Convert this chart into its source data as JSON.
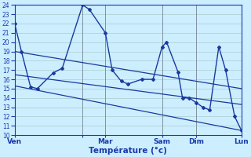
{
  "xlabel": "Température (°c)",
  "background_color": "#cceeff",
  "grid_color": "#aacccc",
  "line_color": "#1a3a9e",
  "ylim": [
    10,
    24
  ],
  "yticks": [
    10,
    11,
    12,
    13,
    14,
    15,
    16,
    17,
    18,
    19,
    20,
    21,
    22,
    23,
    24
  ],
  "xlim": [
    0,
    100
  ],
  "x_tick_positions": [
    0,
    30,
    40,
    65,
    80,
    100
  ],
  "x_tick_labels": [
    "Ven",
    "",
    "Mar",
    "Sam",
    "Dim",
    "Lun"
  ],
  "main_line_x": [
    0,
    3,
    7,
    10,
    17,
    21,
    30,
    33,
    40,
    43,
    47,
    50,
    56,
    61,
    65,
    67,
    72,
    74,
    77,
    80,
    83,
    86,
    90,
    93,
    97,
    100
  ],
  "main_line_y": [
    22,
    19,
    15.2,
    15,
    16.7,
    17.2,
    24,
    23.5,
    21,
    17,
    15.8,
    15.5,
    16,
    16,
    19.5,
    20,
    16.8,
    14,
    14,
    13.5,
    13,
    12.7,
    19.5,
    17,
    12,
    10.5
  ],
  "trend1_x": [
    0,
    100
  ],
  "trend1_y": [
    19.0,
    15.0
  ],
  "trend2_x": [
    0,
    100
  ],
  "trend2_y": [
    16.5,
    13.3
  ],
  "trend3_x": [
    0,
    100
  ],
  "trend3_y": [
    15.3,
    10.5
  ],
  "vline_positions": [
    30,
    40,
    65,
    80,
    100
  ]
}
